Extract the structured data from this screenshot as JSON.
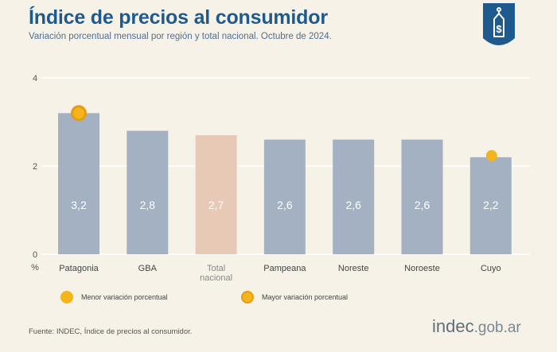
{
  "header": {
    "title": "Índice de precios al consumidor",
    "subtitle": "Variación porcentual mensual por región y total nacional. Octubre de 2024."
  },
  "badge": {
    "icon": "price-tag-dollar-icon",
    "color": "#1e5a8e"
  },
  "chart_data": {
    "type": "bar",
    "categories": [
      "Patagonia",
      "GBA",
      "Total nacional",
      "Pampeana",
      "Noreste",
      "Noroeste",
      "Cuyo"
    ],
    "category_lines": [
      [
        "Patagonia"
      ],
      [
        "GBA"
      ],
      [
        "Total",
        "nacional"
      ],
      [
        "Pampeana"
      ],
      [
        "Noreste"
      ],
      [
        "Noroeste"
      ],
      [
        "Cuyo"
      ]
    ],
    "values": [
      3.2,
      2.8,
      2.7,
      2.6,
      2.6,
      2.6,
      2.2
    ],
    "value_labels": [
      "3,2",
      "2,8",
      "2,7",
      "2,6",
      "2,6",
      "2,6",
      "2,2"
    ],
    "highlight_index": 2,
    "ylim": [
      0,
      4
    ],
    "yticks": [
      0,
      2,
      4
    ],
    "ylabel": "%",
    "min_marker_index": 6,
    "max_marker_index": 0,
    "colors": {
      "bar": "#a3b1c2",
      "highlight": "#e8c9b5",
      "marker": "#f4b41a",
      "marker_ring": "#e69c14",
      "grid": "#ffffff"
    }
  },
  "legend": {
    "min_label": "Menor variación porcentual",
    "max_label": "Mayor variación porcentual"
  },
  "footer": {
    "source": "Fuente: INDEC, Índice de precios al consumidor.",
    "brand_main": "indec",
    "brand_domain": ".gob.ar"
  }
}
